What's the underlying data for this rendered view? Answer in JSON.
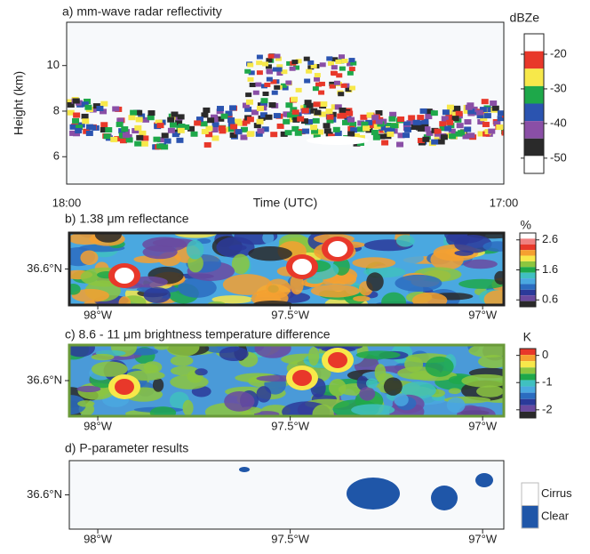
{
  "chart_data": [
    {
      "type": "heatmap",
      "title": "a) mm-wave radar reflectivity",
      "ylabel": "Height (km)",
      "xlabel": "Time (UTC)",
      "xtick_labels": [
        "18:00",
        "17:00"
      ],
      "ylim": [
        4.8,
        11.9
      ],
      "yticks": [
        6,
        8,
        10
      ],
      "colorbar": {
        "label": "dBZe",
        "clim": [
          -54.4,
          -14.1
        ],
        "ticks": [
          -20,
          -30,
          -40,
          -50
        ],
        "colors": [
          "#ffffff",
          "#e8382a",
          "#f7e84a",
          "#1ea84a",
          "#2b54b0",
          "#8a4fa6",
          "#2a2a2a",
          "#ffffff"
        ]
      }
    },
    {
      "type": "contour",
      "title": "b) 1.38 μm reflectance",
      "xlim": [
        -98.074,
        -96.945
      ],
      "xticks": [
        {
          "value": -98,
          "label": "98°W"
        },
        {
          "value": -97.5,
          "label": "97.5°W"
        },
        {
          "value": -97,
          "label": "97°W"
        }
      ],
      "ylim": [
        36.5,
        36.7
      ],
      "yticks": [
        {
          "value": 36.6,
          "label": "36.6°N"
        }
      ],
      "colorbar": {
        "label": "%",
        "clim": [
          0.37,
          2.83
        ],
        "ticks": [
          2.6,
          1.6,
          0.6
        ],
        "colors": [
          "#ffffff",
          "#f08080",
          "#e8382a",
          "#f5a030",
          "#f7e84a",
          "#8cc63f",
          "#1ea84a",
          "#40c0c0",
          "#4aa8e0",
          "#2b6cc0",
          "#2b3a9a",
          "#6a4aa0",
          "#2a2a2a"
        ]
      }
    },
    {
      "type": "contour",
      "title": "c) 8.6 - 11 μm brightness temperature difference",
      "xlim": [
        -98.074,
        -96.945
      ],
      "xticks": [
        {
          "value": -98,
          "label": "98°W"
        },
        {
          "value": -97.5,
          "label": "97.5°W"
        },
        {
          "value": -97,
          "label": "97°W"
        }
      ],
      "ylim": [
        36.5,
        36.7
      ],
      "yticks": [
        {
          "value": 36.6,
          "label": "36.6°N"
        }
      ],
      "colorbar": {
        "label": "K",
        "clim": [
          -2.3,
          0.25
        ],
        "ticks": [
          0,
          -1,
          -2
        ],
        "colors": [
          "#e8382a",
          "#f5a030",
          "#f7e84a",
          "#8cc63f",
          "#1ea84a",
          "#40c0c0",
          "#4aa8e0",
          "#2b6cc0",
          "#2b3a9a",
          "#6a4aa0",
          "#2a2a2a"
        ]
      }
    },
    {
      "type": "classification",
      "title": "d) P-parameter results",
      "xlim": [
        -98.074,
        -96.945
      ],
      "xticks": [
        {
          "value": -98,
          "label": "98°W"
        },
        {
          "value": -97.5,
          "label": "97.5°W"
        },
        {
          "value": -97,
          "label": "97°W"
        }
      ],
      "ylim": [
        36.5,
        36.7
      ],
      "yticks": [
        {
          "value": 36.6,
          "label": "36.6°N"
        }
      ],
      "series": [
        {
          "name": "Cirrus",
          "color": "#ffffff"
        },
        {
          "name": "Clear",
          "color": "#1f56a8"
        }
      ]
    }
  ]
}
